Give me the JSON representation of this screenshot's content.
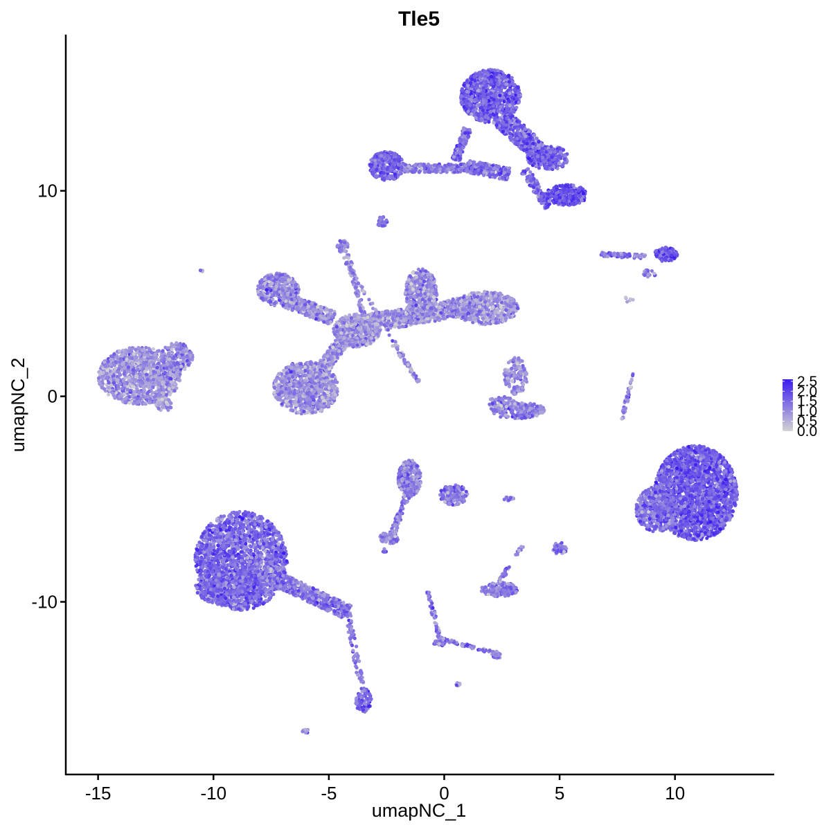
{
  "chart_data": {
    "type": "scatter",
    "title": "Tle5",
    "xlabel": "umapNC_1",
    "ylabel": "umapNC_2",
    "xlim": [
      -16.4,
      14.3
    ],
    "ylim": [
      -18.4,
      17.6
    ],
    "xticks": [
      -15,
      -10,
      -5,
      0,
      5,
      10
    ],
    "xtick_labels": [
      "-15",
      "-10",
      "-5",
      "0",
      "5",
      "10"
    ],
    "yticks": [
      -10,
      0,
      10
    ],
    "ytick_labels": [
      "-10",
      "0",
      "10"
    ],
    "grid": false,
    "legend_placement": "right",
    "colorscale": {
      "low_color": "#d3d3d3",
      "high_color": "#3a1cf0",
      "min": 0,
      "max": 2.6,
      "ticks": [
        0.0,
        0.5,
        1.0,
        1.5,
        2.0,
        2.5
      ],
      "tick_labels": [
        "0.0",
        "0.5",
        "1.0",
        "1.5",
        "2.0",
        "2.5"
      ]
    },
    "clusters": [
      {
        "shape": "blob",
        "cx": -13.2,
        "cy": 1.0,
        "rx": 1.8,
        "ry": 1.4,
        "n": 1100,
        "level": 0.9
      },
      {
        "shape": "blob",
        "cx": -11.6,
        "cy": 1.9,
        "rx": 0.7,
        "ry": 0.7,
        "n": 150,
        "level": 1.0
      },
      {
        "shape": "blob",
        "cx": -8.8,
        "cy": -8.0,
        "rx": 2.0,
        "ry": 2.4,
        "n": 1800,
        "level": 1.5
      },
      {
        "shape": "blob",
        "cx": -9.3,
        "cy": -9.3,
        "rx": 1.5,
        "ry": 0.9,
        "n": 500,
        "level": 1.5
      },
      {
        "shape": "line",
        "x1": -7.8,
        "y1": -8.6,
        "x2": -4.2,
        "y2": -10.5,
        "width": 0.7,
        "n": 500,
        "level": 1.3
      },
      {
        "shape": "line",
        "x1": -4.2,
        "y1": -10.5,
        "x2": -3.6,
        "y2": -14.0,
        "width": 0.25,
        "n": 70,
        "level": 1.3
      },
      {
        "shape": "blob",
        "cx": -3.5,
        "cy": -14.8,
        "rx": 0.35,
        "ry": 0.6,
        "n": 100,
        "level": 1.6
      },
      {
        "shape": "blob",
        "cx": -6.0,
        "cy": -16.3,
        "rx": 0.15,
        "ry": 0.12,
        "n": 10,
        "level": 1.3
      },
      {
        "shape": "blob",
        "cx": -12.1,
        "cy": -0.4,
        "rx": 0.4,
        "ry": 0.3,
        "n": 60,
        "level": 0.7
      },
      {
        "shape": "blob",
        "cx": -7.2,
        "cy": 5.2,
        "rx": 0.9,
        "ry": 0.8,
        "n": 320,
        "level": 1.0
      },
      {
        "shape": "line",
        "x1": -6.9,
        "y1": 4.7,
        "x2": -4.8,
        "y2": 3.8,
        "width": 0.7,
        "n": 300,
        "level": 1.0
      },
      {
        "shape": "blob",
        "cx": -6.0,
        "cy": 0.4,
        "rx": 1.4,
        "ry": 1.3,
        "n": 900,
        "level": 0.95
      },
      {
        "shape": "line",
        "x1": -5.3,
        "y1": 1.3,
        "x2": -3.9,
        "y2": 3.5,
        "width": 0.6,
        "n": 300,
        "level": 0.9
      },
      {
        "shape": "blob",
        "cx": -3.8,
        "cy": 3.2,
        "rx": 1.0,
        "ry": 0.8,
        "n": 500,
        "level": 0.8
      },
      {
        "shape": "line",
        "x1": -3.5,
        "y1": 3.5,
        "x2": 1.5,
        "y2": 4.5,
        "width": 0.9,
        "n": 700,
        "level": 0.9
      },
      {
        "shape": "blob",
        "cx": -1.0,
        "cy": 5.0,
        "rx": 0.7,
        "ry": 1.2,
        "n": 400,
        "level": 1.0
      },
      {
        "shape": "blob",
        "cx": 1.8,
        "cy": 4.3,
        "rx": 1.4,
        "ry": 0.8,
        "n": 500,
        "level": 0.9
      },
      {
        "shape": "line",
        "x1": -4.2,
        "y1": 6.9,
        "x2": -3.5,
        "y2": 3.9,
        "width": 0.2,
        "n": 70,
        "level": 1.0
      },
      {
        "shape": "line",
        "x1": -4.4,
        "y1": 6.8,
        "x2": -1.1,
        "y2": 0.7,
        "width": 0.12,
        "n": 60,
        "level": 1.0
      },
      {
        "shape": "line",
        "x1": -2.2,
        "y1": 2.5,
        "x2": -1.1,
        "y2": 0.7,
        "width": 0.12,
        "n": 40,
        "level": 0.9
      },
      {
        "shape": "blob",
        "cx": -4.4,
        "cy": 7.3,
        "rx": 0.25,
        "ry": 0.3,
        "n": 40,
        "level": 1.1
      },
      {
        "shape": "blob",
        "cx": -10.5,
        "cy": 6.1,
        "rx": 0.08,
        "ry": 0.08,
        "n": 3,
        "level": 0.5
      },
      {
        "shape": "blob",
        "cx": -2.5,
        "cy": 11.2,
        "rx": 0.75,
        "ry": 0.7,
        "n": 300,
        "level": 1.6
      },
      {
        "shape": "line",
        "x1": -2.0,
        "y1": 11.1,
        "x2": 1.3,
        "y2": 11.1,
        "width": 0.4,
        "n": 220,
        "level": 1.3
      },
      {
        "shape": "line",
        "x1": 1.0,
        "y1": 11.2,
        "x2": 2.8,
        "y2": 10.8,
        "width": 0.6,
        "n": 200,
        "level": 1.4
      },
      {
        "shape": "blob",
        "cx": 2.0,
        "cy": 14.6,
        "rx": 1.3,
        "ry": 1.3,
        "n": 1000,
        "level": 1.6
      },
      {
        "shape": "line",
        "x1": 1.0,
        "y1": 13.0,
        "x2": 0.5,
        "y2": 11.5,
        "width": 0.35,
        "n": 120,
        "level": 1.4
      },
      {
        "shape": "line",
        "x1": 2.5,
        "y1": 13.5,
        "x2": 4.5,
        "y2": 11.5,
        "width": 0.9,
        "n": 500,
        "level": 1.6
      },
      {
        "shape": "blob",
        "cx": 4.5,
        "cy": 11.6,
        "rx": 0.9,
        "ry": 0.6,
        "n": 300,
        "level": 1.6
      },
      {
        "shape": "blob",
        "cx": 5.3,
        "cy": 9.8,
        "rx": 0.9,
        "ry": 0.5,
        "n": 320,
        "level": 1.9
      },
      {
        "shape": "line",
        "x1": 3.5,
        "y1": 11.0,
        "x2": 4.5,
        "y2": 9.2,
        "width": 0.4,
        "n": 120,
        "level": 1.6
      },
      {
        "shape": "blob",
        "cx": -2.7,
        "cy": 8.5,
        "rx": 0.25,
        "ry": 0.25,
        "n": 25,
        "level": 1.4
      },
      {
        "shape": "line",
        "x1": 6.8,
        "y1": 6.9,
        "x2": 8.7,
        "y2": 6.8,
        "width": 0.2,
        "n": 80,
        "level": 1.3
      },
      {
        "shape": "blob",
        "cx": 9.6,
        "cy": 6.9,
        "rx": 0.5,
        "ry": 0.35,
        "n": 140,
        "level": 1.8
      },
      {
        "shape": "blob",
        "cx": 8.9,
        "cy": 6.0,
        "rx": 0.3,
        "ry": 0.2,
        "n": 20,
        "level": 1.2
      },
      {
        "shape": "blob",
        "cx": 3.1,
        "cy": 1.0,
        "rx": 0.5,
        "ry": 0.9,
        "n": 140,
        "level": 0.9
      },
      {
        "shape": "blob",
        "cx": 3.2,
        "cy": -0.7,
        "rx": 1.2,
        "ry": 0.4,
        "n": 200,
        "level": 1.2
      },
      {
        "shape": "blob",
        "cx": 2.5,
        "cy": -0.3,
        "rx": 0.6,
        "ry": 0.3,
        "n": 60,
        "level": 0.9
      },
      {
        "shape": "line",
        "x1": 8.2,
        "y1": 1.1,
        "x2": 7.7,
        "y2": -1.1,
        "width": 0.12,
        "n": 45,
        "level": 1.0
      },
      {
        "shape": "blob",
        "cx": 10.9,
        "cy": -4.7,
        "rx": 1.8,
        "ry": 2.3,
        "n": 2200,
        "level": 1.7
      },
      {
        "shape": "blob",
        "cx": 9.2,
        "cy": -5.5,
        "rx": 0.9,
        "ry": 1.1,
        "n": 500,
        "level": 1.4
      },
      {
        "shape": "blob",
        "cx": -1.5,
        "cy": -4.0,
        "rx": 0.5,
        "ry": 0.9,
        "n": 300,
        "level": 1.2
      },
      {
        "shape": "blob",
        "cx": 0.4,
        "cy": -4.8,
        "rx": 0.6,
        "ry": 0.5,
        "n": 150,
        "level": 1.3
      },
      {
        "shape": "line",
        "x1": -1.5,
        "y1": -4.5,
        "x2": -2.2,
        "y2": -6.6,
        "width": 0.25,
        "n": 80,
        "level": 1.1
      },
      {
        "shape": "blob",
        "cx": -2.4,
        "cy": -6.9,
        "rx": 0.4,
        "ry": 0.3,
        "n": 80,
        "level": 1.2
      },
      {
        "shape": "blob",
        "cx": -2.6,
        "cy": -7.5,
        "rx": 0.1,
        "ry": 0.1,
        "n": 5,
        "level": 1.0
      },
      {
        "shape": "blob",
        "cx": 2.4,
        "cy": -9.4,
        "rx": 0.8,
        "ry": 0.35,
        "n": 150,
        "level": 1.2
      },
      {
        "shape": "line",
        "x1": 2.4,
        "y1": -9.0,
        "x2": 3.4,
        "y2": -7.3,
        "width": 0.15,
        "n": 30,
        "level": 1.1
      },
      {
        "shape": "line",
        "x1": -0.7,
        "y1": -9.5,
        "x2": -0.2,
        "y2": -11.8,
        "width": 0.15,
        "n": 50,
        "level": 1.2
      },
      {
        "shape": "line",
        "x1": -0.2,
        "y1": -11.8,
        "x2": 2.3,
        "y2": -12.5,
        "width": 0.15,
        "n": 60,
        "level": 1.2
      },
      {
        "shape": "blob",
        "cx": -0.2,
        "cy": -12.0,
        "rx": 0.25,
        "ry": 0.2,
        "n": 30,
        "level": 1.4
      },
      {
        "shape": "blob",
        "cx": 2.3,
        "cy": -12.6,
        "rx": 0.25,
        "ry": 0.15,
        "n": 25,
        "level": 1.3
      },
      {
        "shape": "blob",
        "cx": 0.6,
        "cy": -14.0,
        "rx": 0.1,
        "ry": 0.1,
        "n": 8,
        "level": 1.2
      },
      {
        "shape": "blob",
        "cx": 5.0,
        "cy": -7.4,
        "rx": 0.3,
        "ry": 0.3,
        "n": 40,
        "level": 1.2
      },
      {
        "shape": "blob",
        "cx": 2.8,
        "cy": -5.0,
        "rx": 0.25,
        "ry": 0.1,
        "n": 12,
        "level": 1.1
      },
      {
        "shape": "blob",
        "cx": 8.0,
        "cy": 4.7,
        "rx": 0.2,
        "ry": 0.2,
        "n": 6,
        "level": 0.8
      }
    ]
  }
}
